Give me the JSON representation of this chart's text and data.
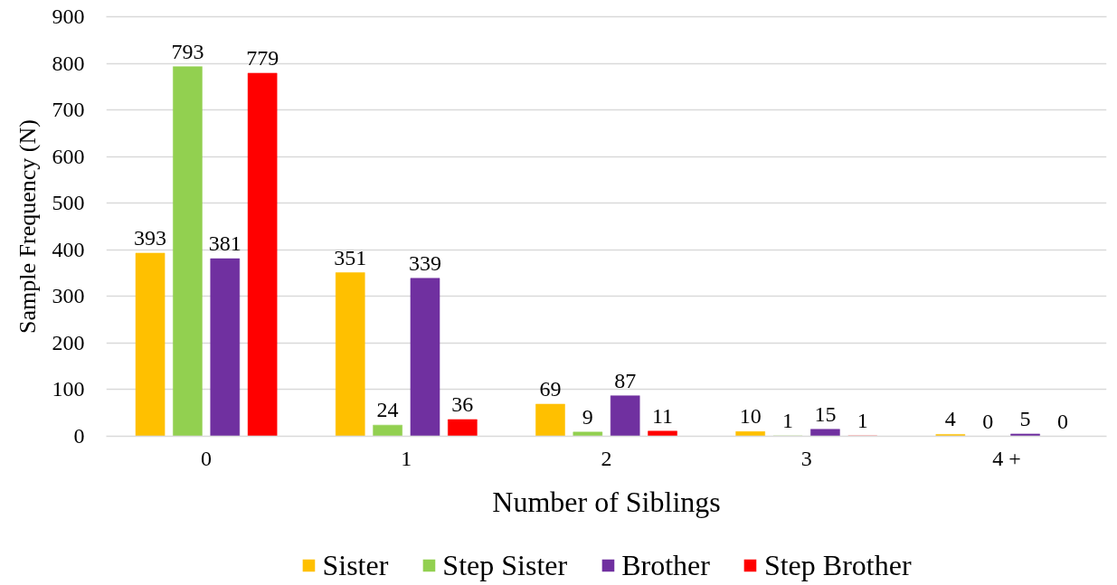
{
  "chart_data": {
    "type": "bar",
    "xlabel": "Number of Siblings",
    "ylabel": "Sample Frequency (N)",
    "categories": [
      "0",
      "1",
      "2",
      "3",
      "4 +"
    ],
    "series": [
      {
        "name": "Sister",
        "color": "#ffc000",
        "values": [
          393,
          351,
          69,
          10,
          4
        ]
      },
      {
        "name": "Step Sister",
        "color": "#92d050",
        "values": [
          793,
          24,
          9,
          1,
          0
        ]
      },
      {
        "name": "Brother",
        "color": "#7030a0",
        "values": [
          381,
          339,
          87,
          15,
          5
        ]
      },
      {
        "name": "Step Brother",
        "color": "#ff0000",
        "values": [
          779,
          36,
          11,
          1,
          0
        ]
      }
    ],
    "ylim": [
      0,
      900
    ],
    "yticks": [
      0,
      100,
      200,
      300,
      400,
      500,
      600,
      700,
      800,
      900
    ],
    "grid": "y",
    "legend": "bottom",
    "data_labels": true
  }
}
